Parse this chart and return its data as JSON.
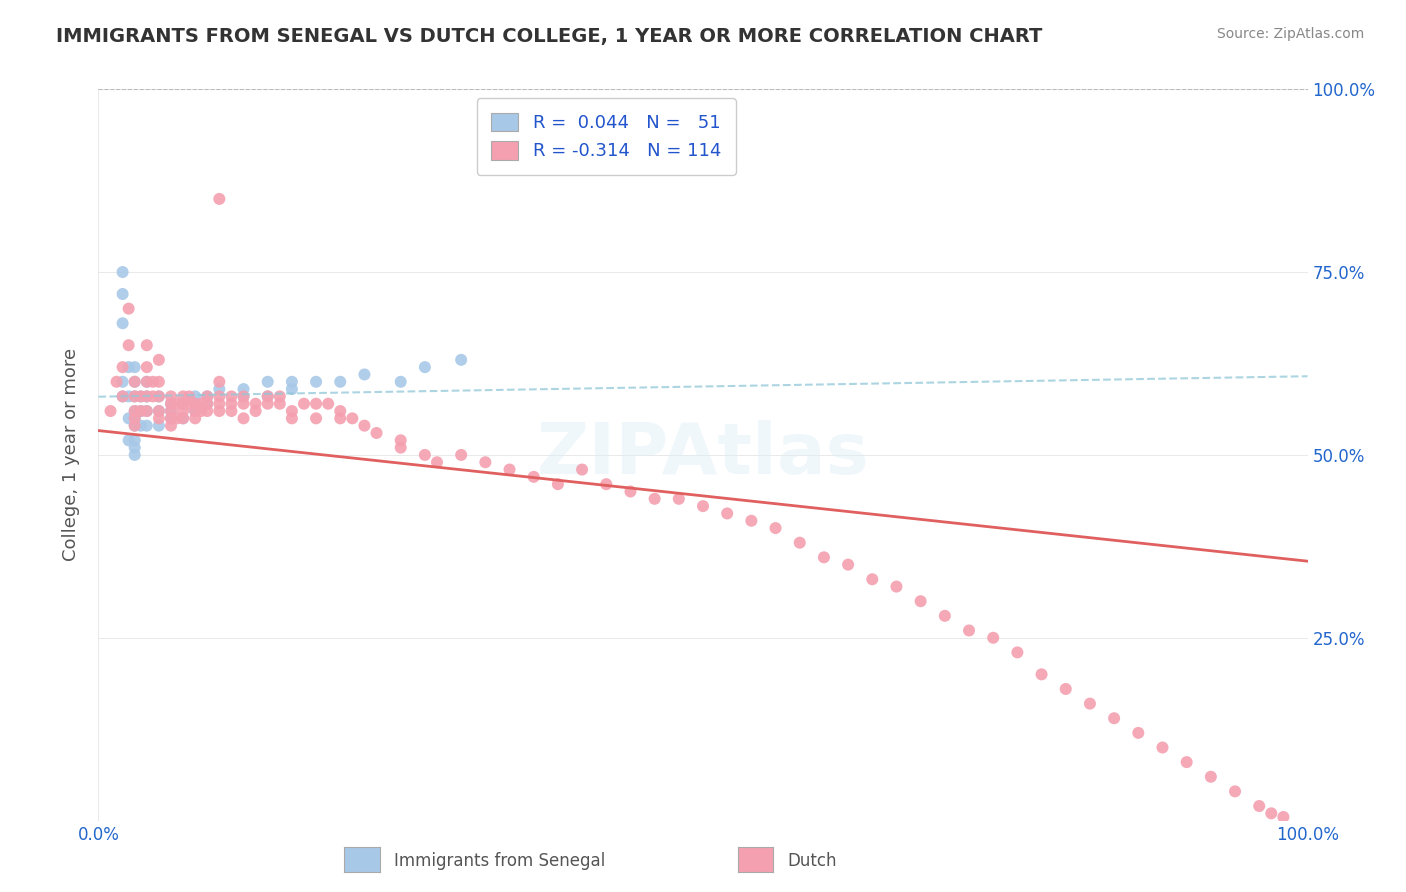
{
  "title": "IMMIGRANTS FROM SENEGAL VS DUTCH COLLEGE, 1 YEAR OR MORE CORRELATION CHART",
  "source_text": "Source: ZipAtlas.com",
  "ylabel": "College, 1 year or more",
  "xlim": [
    0.0,
    1.0
  ],
  "ylim": [
    0.0,
    1.0
  ],
  "color_blue": "#a8c8e8",
  "color_pink": "#f4a0b0",
  "color_trendline_blue": "#90c8d8",
  "color_trendline_pink": "#e06060",
  "color_title": "#333333",
  "color_legend_text": "#2255cc",
  "color_axis_label": "#2266cc",
  "watermark_text": "ZIPAtlas",
  "blue_scatter_x": [
    0.02,
    0.02,
    0.02,
    0.02,
    0.02,
    0.025,
    0.025,
    0.025,
    0.025,
    0.03,
    0.03,
    0.03,
    0.03,
    0.03,
    0.03,
    0.03,
    0.03,
    0.03,
    0.035,
    0.035,
    0.035,
    0.04,
    0.04,
    0.04,
    0.04,
    0.05,
    0.05,
    0.05,
    0.06,
    0.06,
    0.06,
    0.07,
    0.07,
    0.08,
    0.08,
    0.08,
    0.09,
    0.09,
    0.1,
    0.12,
    0.12,
    0.14,
    0.14,
    0.16,
    0.16,
    0.18,
    0.2,
    0.22,
    0.25,
    0.27,
    0.3
  ],
  "blue_scatter_y": [
    0.75,
    0.72,
    0.68,
    0.6,
    0.58,
    0.62,
    0.58,
    0.55,
    0.52,
    0.62,
    0.6,
    0.58,
    0.56,
    0.55,
    0.54,
    0.52,
    0.51,
    0.5,
    0.58,
    0.56,
    0.54,
    0.6,
    0.58,
    0.56,
    0.54,
    0.58,
    0.56,
    0.54,
    0.57,
    0.56,
    0.55,
    0.57,
    0.55,
    0.58,
    0.57,
    0.56,
    0.58,
    0.57,
    0.59,
    0.59,
    0.58,
    0.6,
    0.58,
    0.6,
    0.59,
    0.6,
    0.6,
    0.61,
    0.6,
    0.62,
    0.63
  ],
  "pink_scatter_x": [
    0.01,
    0.015,
    0.02,
    0.02,
    0.025,
    0.025,
    0.03,
    0.03,
    0.03,
    0.03,
    0.03,
    0.035,
    0.035,
    0.04,
    0.04,
    0.04,
    0.04,
    0.04,
    0.045,
    0.045,
    0.05,
    0.05,
    0.05,
    0.05,
    0.05,
    0.06,
    0.06,
    0.06,
    0.06,
    0.06,
    0.065,
    0.065,
    0.07,
    0.07,
    0.07,
    0.07,
    0.075,
    0.075,
    0.08,
    0.08,
    0.08,
    0.085,
    0.085,
    0.09,
    0.09,
    0.09,
    0.1,
    0.1,
    0.1,
    0.1,
    0.1,
    0.11,
    0.11,
    0.11,
    0.12,
    0.12,
    0.12,
    0.13,
    0.13,
    0.14,
    0.14,
    0.15,
    0.15,
    0.16,
    0.16,
    0.17,
    0.18,
    0.18,
    0.19,
    0.2,
    0.2,
    0.21,
    0.22,
    0.23,
    0.25,
    0.25,
    0.27,
    0.28,
    0.3,
    0.32,
    0.34,
    0.36,
    0.38,
    0.4,
    0.42,
    0.44,
    0.46,
    0.48,
    0.5,
    0.52,
    0.54,
    0.56,
    0.58,
    0.6,
    0.62,
    0.64,
    0.66,
    0.68,
    0.7,
    0.72,
    0.74,
    0.76,
    0.78,
    0.8,
    0.82,
    0.84,
    0.86,
    0.88,
    0.9,
    0.92,
    0.94,
    0.96,
    0.97,
    0.98
  ],
  "pink_scatter_y": [
    0.56,
    0.6,
    0.62,
    0.58,
    0.7,
    0.65,
    0.6,
    0.58,
    0.56,
    0.55,
    0.54,
    0.58,
    0.56,
    0.65,
    0.62,
    0.6,
    0.58,
    0.56,
    0.6,
    0.58,
    0.63,
    0.6,
    0.58,
    0.56,
    0.55,
    0.58,
    0.57,
    0.56,
    0.55,
    0.54,
    0.57,
    0.55,
    0.58,
    0.57,
    0.56,
    0.55,
    0.58,
    0.57,
    0.57,
    0.56,
    0.55,
    0.57,
    0.56,
    0.58,
    0.57,
    0.56,
    0.85,
    0.6,
    0.58,
    0.57,
    0.56,
    0.58,
    0.57,
    0.56,
    0.58,
    0.57,
    0.55,
    0.57,
    0.56,
    0.58,
    0.57,
    0.58,
    0.57,
    0.56,
    0.55,
    0.57,
    0.57,
    0.55,
    0.57,
    0.56,
    0.55,
    0.55,
    0.54,
    0.53,
    0.52,
    0.51,
    0.5,
    0.49,
    0.5,
    0.49,
    0.48,
    0.47,
    0.46,
    0.48,
    0.46,
    0.45,
    0.44,
    0.44,
    0.43,
    0.42,
    0.41,
    0.4,
    0.38,
    0.36,
    0.35,
    0.33,
    0.32,
    0.3,
    0.28,
    0.26,
    0.25,
    0.23,
    0.2,
    0.18,
    0.16,
    0.14,
    0.12,
    0.1,
    0.08,
    0.06,
    0.04,
    0.02,
    0.01,
    0.005
  ],
  "legend_label1": "R =  0.044   N =   51",
  "legend_label2": "R = -0.314   N = 114",
  "bottom_label1": "Immigrants from Senegal",
  "bottom_label2": "Dutch"
}
